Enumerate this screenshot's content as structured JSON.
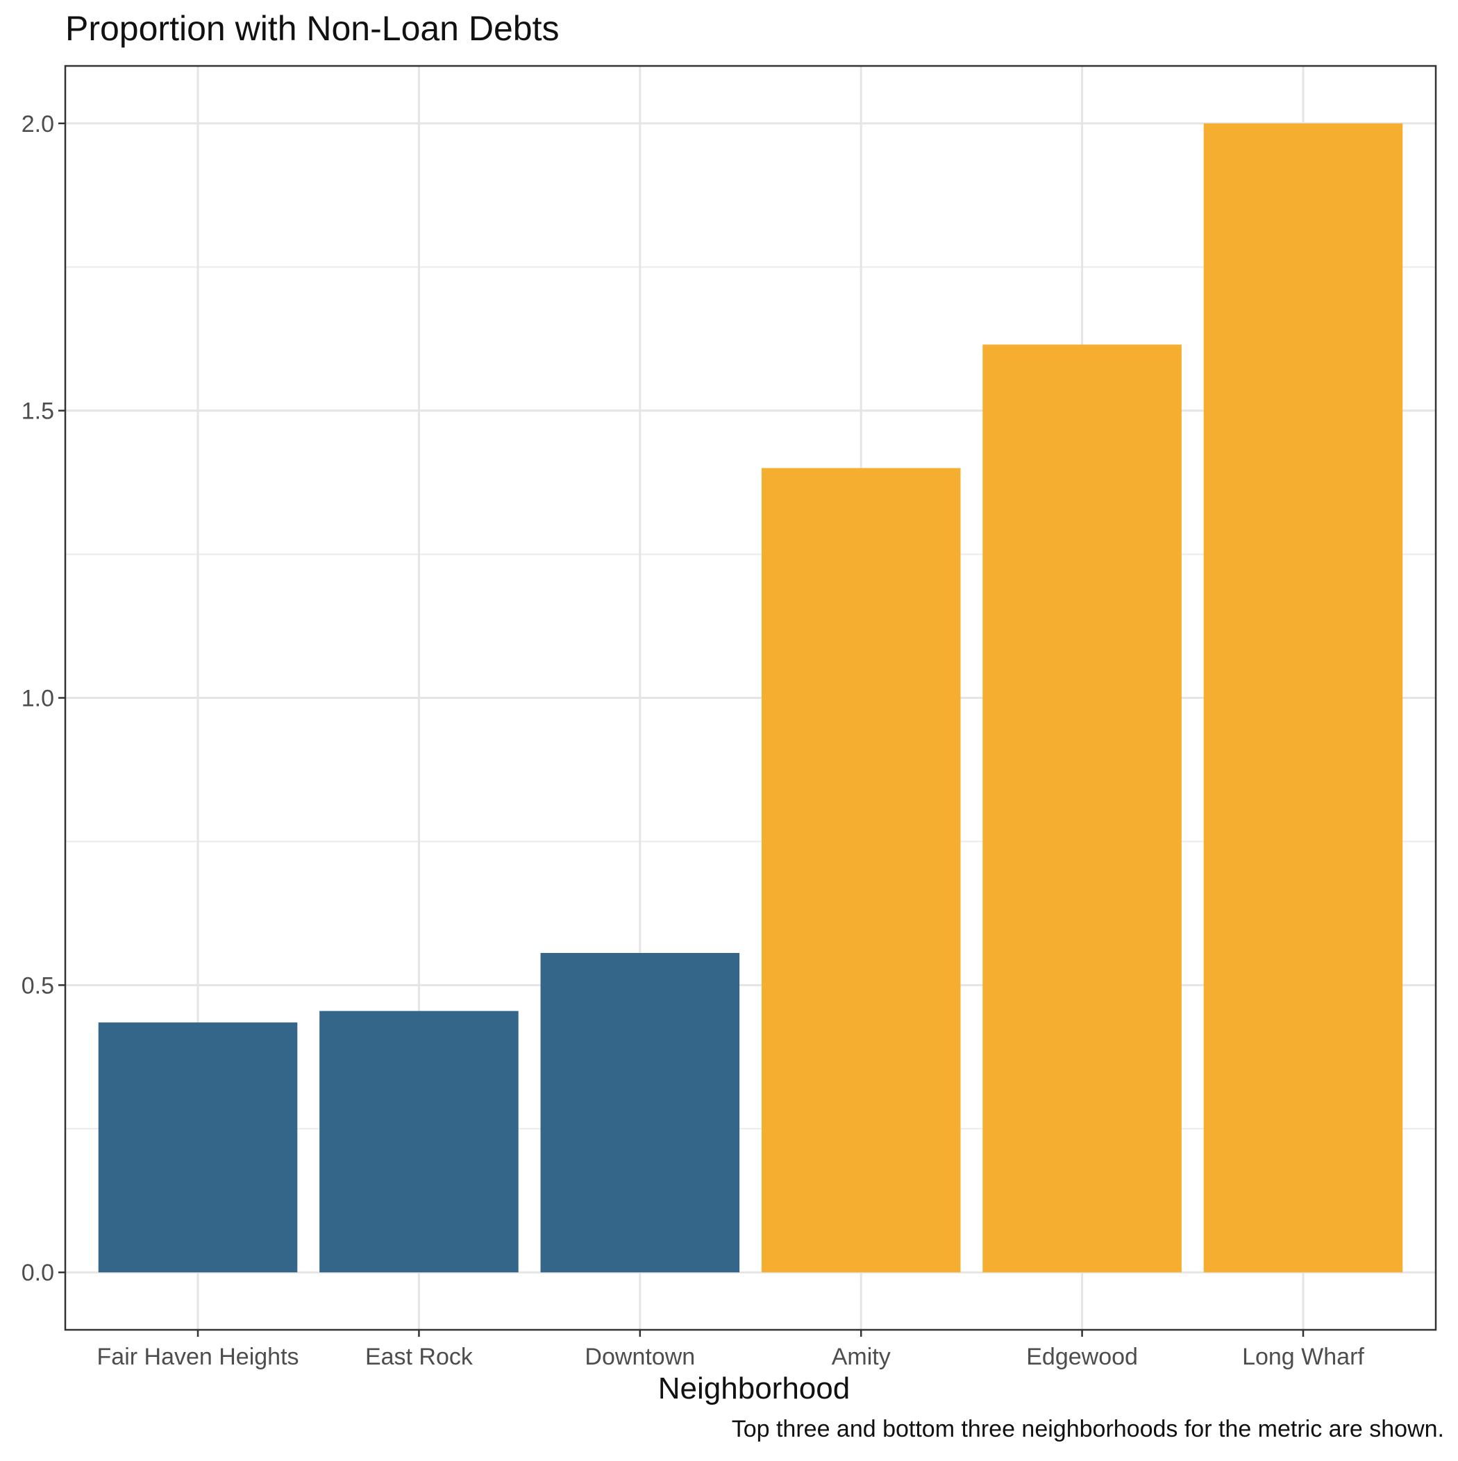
{
  "chart_data": {
    "type": "bar",
    "title": "Proportion with Non-Loan Debts",
    "xlabel": "Neighborhood",
    "ylabel": "",
    "caption": "Top three and bottom three neighborhoods for the metric are shown.",
    "categories": [
      "Fair Haven Heights",
      "East Rock",
      "Downtown",
      "Amity",
      "Edgewood",
      "Long Wharf"
    ],
    "values": [
      0.435,
      0.455,
      0.556,
      1.4,
      1.615,
      2.0
    ],
    "groups": [
      "bottom",
      "bottom",
      "bottom",
      "top",
      "top",
      "top"
    ],
    "colors": {
      "bottom": "#336689",
      "top": "#f5ae2f"
    },
    "ylim": [
      -0.1,
      2.1
    ],
    "yticks": [
      "0.0",
      "0.5",
      "1.0",
      "1.5",
      "2.0"
    ],
    "grid": true,
    "legend": "none"
  }
}
